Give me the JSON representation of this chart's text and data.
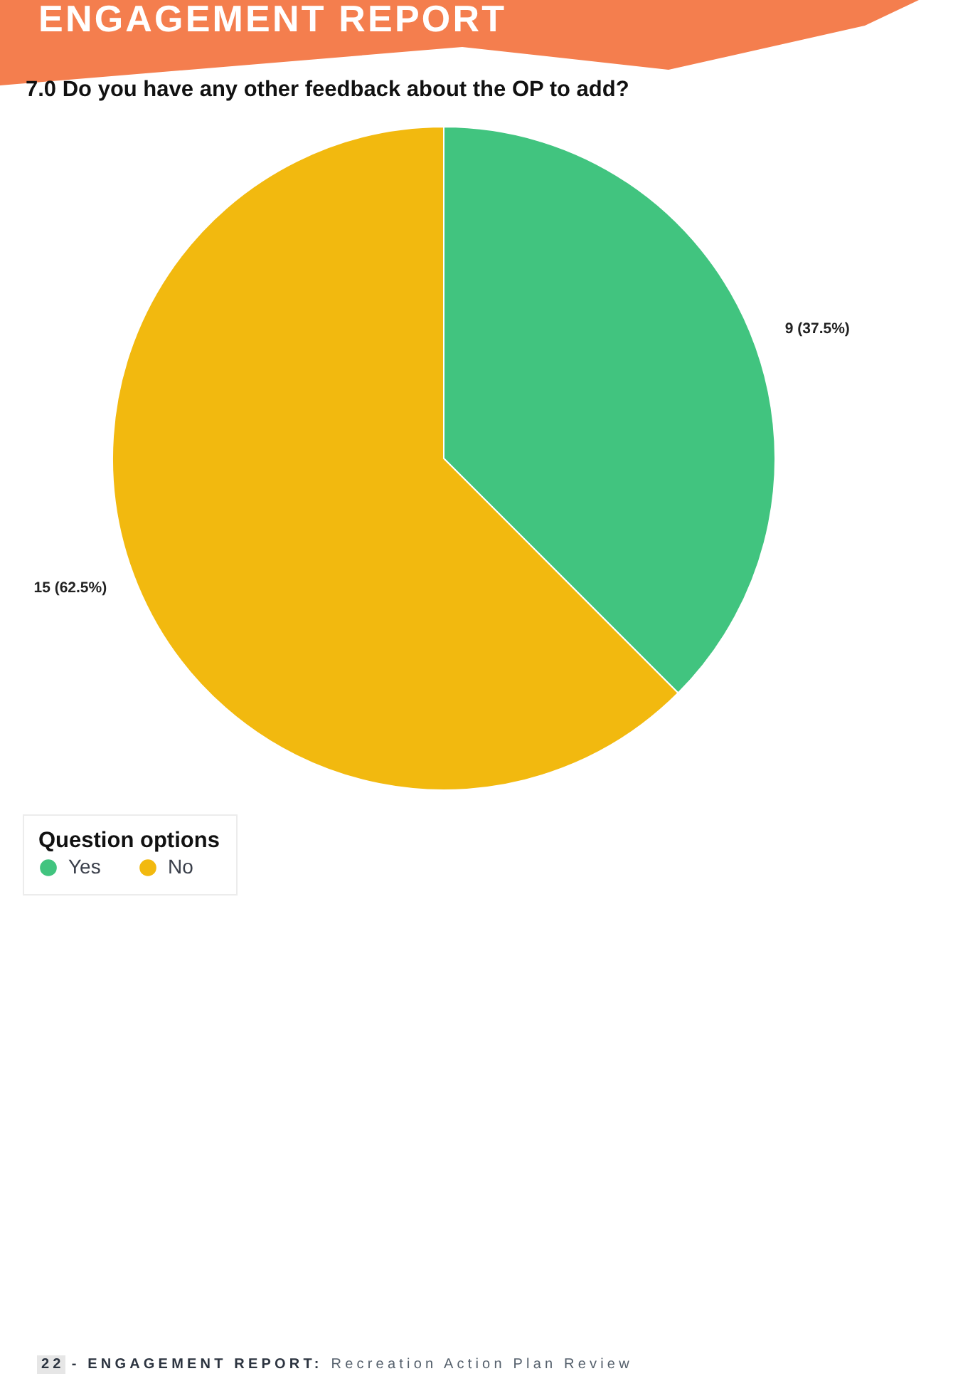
{
  "chart_data": {
    "type": "pie",
    "title": "7.0 Do you have any other feedback about the OP to add?",
    "categories": [
      "Yes",
      "No"
    ],
    "values": [
      9,
      15
    ],
    "colors": [
      "#41c47f",
      "#f2b90f"
    ],
    "value_labels": [
      "9 (37.5%)",
      "15 (62.5%)"
    ],
    "legend_title": "Question options",
    "legend": "bottom left",
    "annotations": [
      "ENGAGEMENT REPORT",
      "22",
      "- ENGAGEMENT REPORT:",
      "Recreation Action Plan Review"
    ]
  }
}
